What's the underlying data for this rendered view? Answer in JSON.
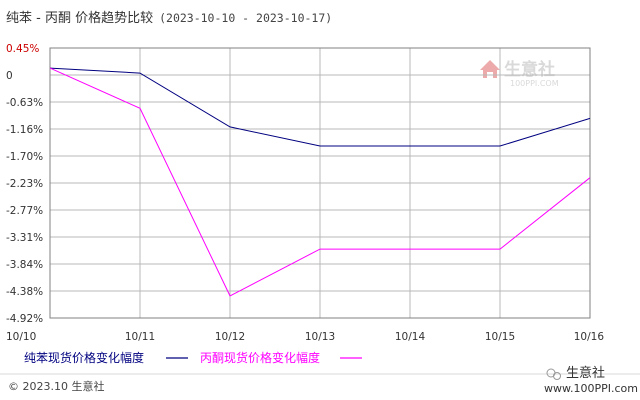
{
  "chart_data": {
    "type": "line",
    "title": "纯苯 - 丙酮 价格趋势比较",
    "date_range": "(2023-10-10 - 2023-10-17)",
    "x": [
      "10/10",
      "10/11",
      "10/12",
      "10/13",
      "10/14",
      "10/15",
      "10/16"
    ],
    "y_ticks": [
      "0.45%",
      "0",
      "-0.63%",
      "-1.16%",
      "-1.70%",
      "-2.23%",
      "-2.77%",
      "-3.31%",
      "-3.84%",
      "-4.38%",
      "-4.92%"
    ],
    "ylim": [
      -4.92,
      0.45
    ],
    "grid": true,
    "legend_position": "bottom-left",
    "series": [
      {
        "name": "纯苯现货价格变化幅度",
        "color": "#000080",
        "values": [
          0.05,
          -0.05,
          -1.12,
          -1.5,
          -1.5,
          -1.5,
          -0.95
        ]
      },
      {
        "name": "丙酮现货价格变化幅度",
        "color": "#ff00ff",
        "values": [
          0.05,
          -0.75,
          -4.48,
          -3.55,
          -3.55,
          -3.55,
          -2.13
        ]
      }
    ]
  },
  "colors": {
    "grid": "#b8b8b8",
    "axis": "#808080",
    "first_tick": "#cc0000",
    "background": "#ffffff"
  },
  "watermark": {
    "name": "生意社",
    "url": "100PPI.COM"
  },
  "footer": {
    "copyright": "© 2023.10 生意社",
    "brand": "生意社",
    "url": "www.100PPI.com"
  }
}
